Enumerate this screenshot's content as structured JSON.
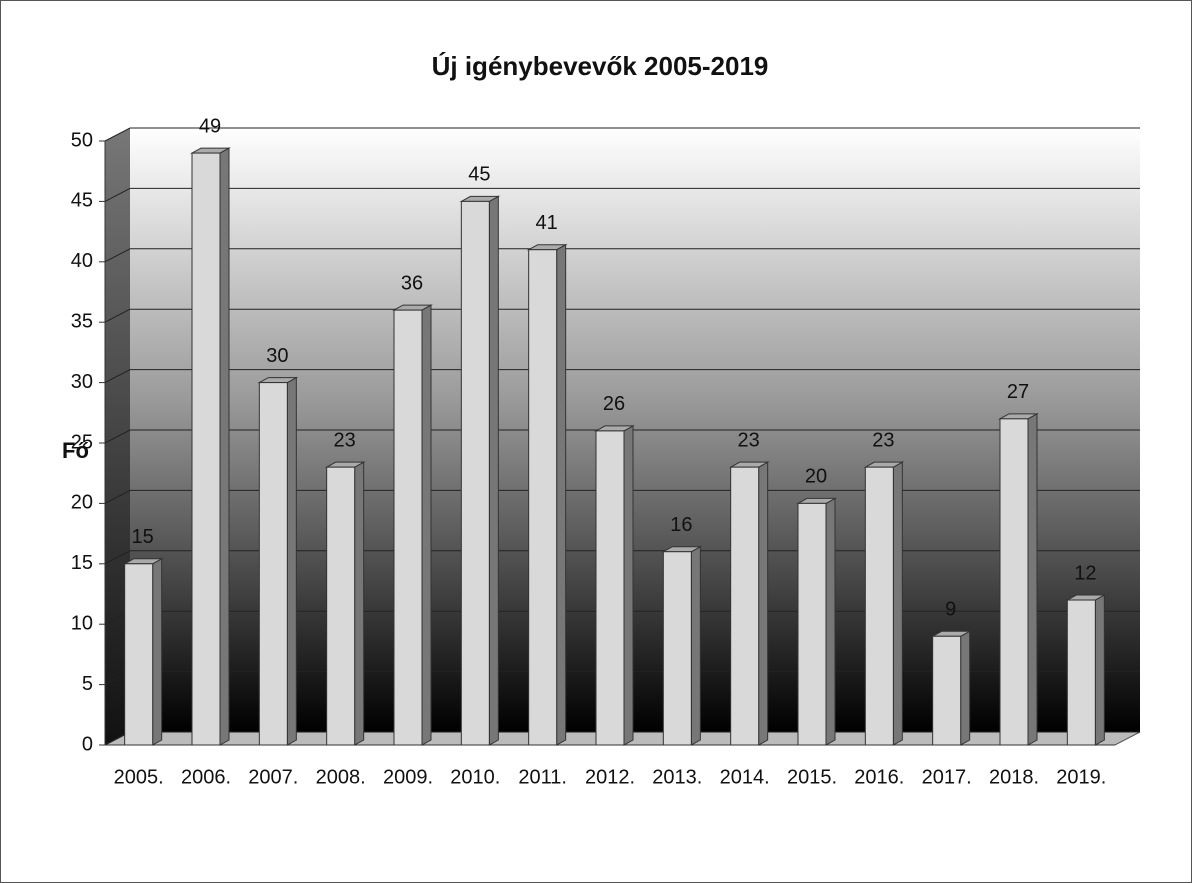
{
  "chart_data": {
    "type": "bar",
    "title": "Új igénybevevők 2005-2019",
    "y_label": "Fő",
    "categories": [
      "2005.",
      "2006.",
      "2007.",
      "2008.",
      "2009.",
      "2010.",
      "2011.",
      "2012.",
      "2013.",
      "2014.",
      "2015.",
      "2016.",
      "2017.",
      "2018.",
      "2019."
    ],
    "values": [
      15,
      49,
      30,
      23,
      36,
      45,
      41,
      26,
      16,
      23,
      20,
      23,
      9,
      27,
      12
    ],
    "color": "#d9d9d9",
    "ylim": [
      0,
      50
    ],
    "yticks": [
      0,
      5,
      10,
      15,
      20,
      25,
      30,
      35,
      40,
      45,
      50
    ],
    "grid": true
  }
}
